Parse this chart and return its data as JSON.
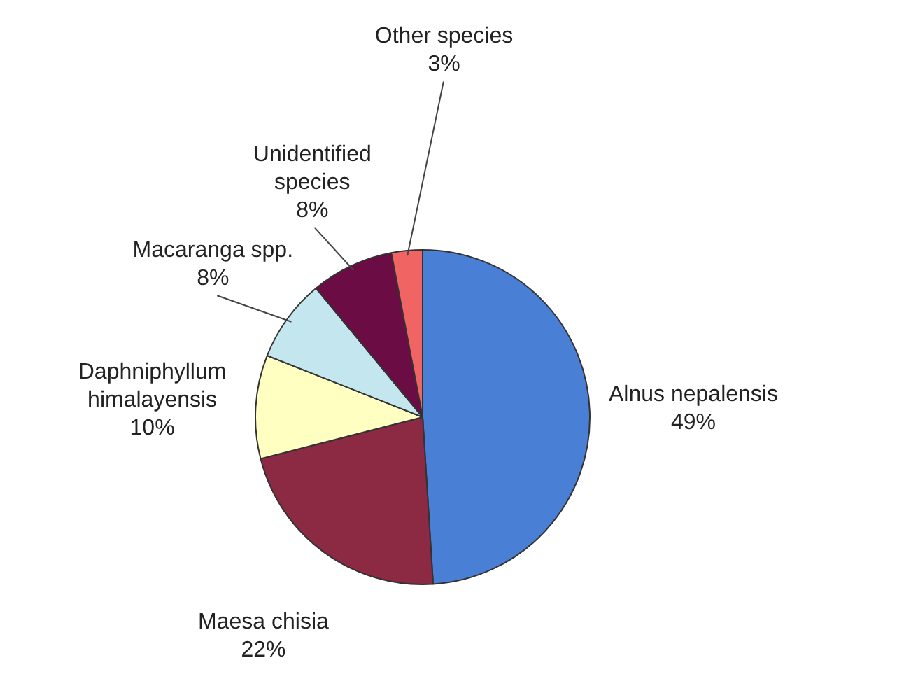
{
  "chart_data": {
    "type": "pie",
    "categories": [
      "Alnus nepalensis",
      "Maesa chisia",
      "Daphniphyllum himalayensis",
      "Macaranga spp.",
      "Unidentified species",
      "Other species"
    ],
    "values": [
      49,
      22,
      10,
      8,
      8,
      3
    ],
    "value_labels": [
      "49%",
      "22%",
      "10%",
      "8%",
      "8%",
      "3%"
    ],
    "colors": [
      "#4a7fd6",
      "#8c2a44",
      "#ffffc2",
      "#c4e6ee",
      "#6b0c44",
      "#f06464"
    ],
    "legend": false
  }
}
